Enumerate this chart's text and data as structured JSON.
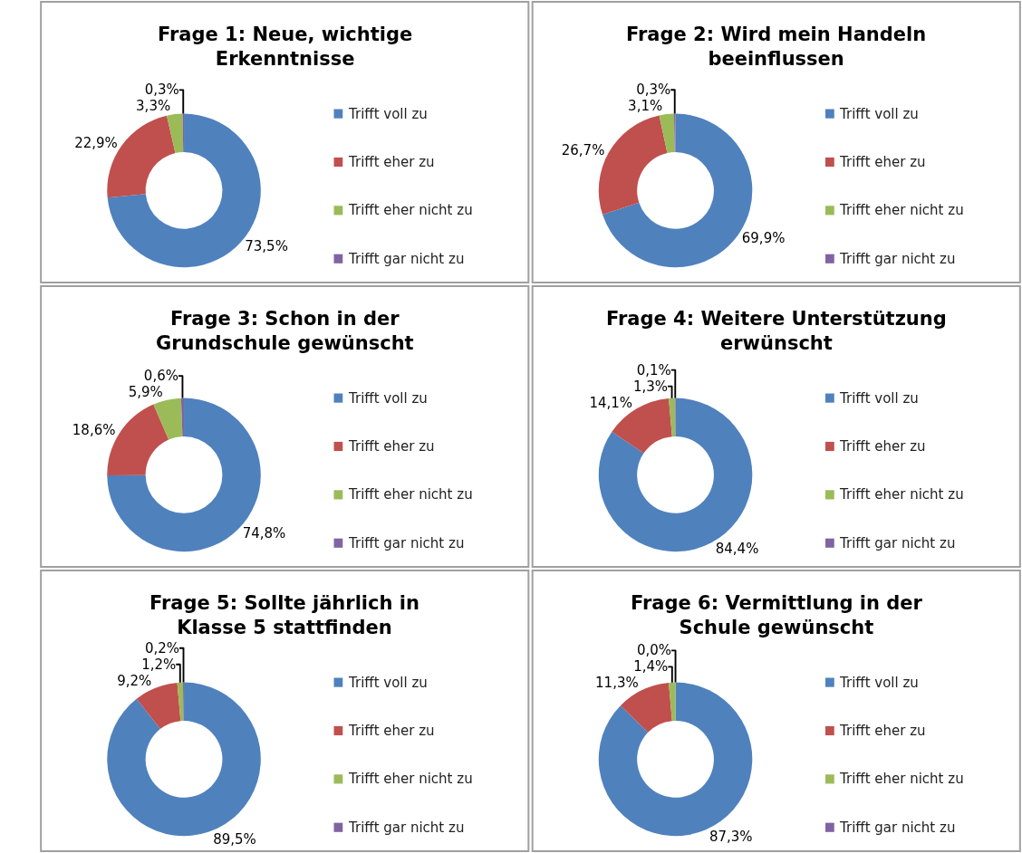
{
  "chart_data": [
    {
      "type": "donut",
      "title": "Frage 1: Neue, wichtige Erkenntnisse",
      "categories": [
        "Trifft voll zu",
        "Trifft eher zu",
        "Trifft eher nicht zu",
        "Trifft gar nicht zu"
      ],
      "values": [
        73.5,
        22.9,
        3.3,
        0.3
      ],
      "value_labels": [
        "73,5%",
        "22,9%",
        "3,3%",
        "0,3%"
      ],
      "colors": [
        "#4f81bd",
        "#c0504d",
        "#9bbb59",
        "#8064a2"
      ],
      "legend": "right"
    },
    {
      "type": "donut",
      "title": "Frage 2: Wird mein Handeln beeinflussen",
      "categories": [
        "Trifft voll zu",
        "Trifft eher zu",
        "Trifft eher nicht zu",
        "Trifft gar nicht zu"
      ],
      "values": [
        69.9,
        26.7,
        3.1,
        0.3
      ],
      "value_labels": [
        "69,9%",
        "26,7%",
        "3,1%",
        "0,3%"
      ],
      "colors": [
        "#4f81bd",
        "#c0504d",
        "#9bbb59",
        "#8064a2"
      ],
      "legend": "right"
    },
    {
      "type": "donut",
      "title": "Frage 3: Schon in der Grundschule gewünscht",
      "categories": [
        "Trifft voll zu",
        "Trifft eher zu",
        "Trifft eher nicht zu",
        "Trifft gar nicht zu"
      ],
      "values": [
        74.8,
        18.6,
        5.9,
        0.6
      ],
      "value_labels": [
        "74,8%",
        "18,6%",
        "5,9%",
        "0,6%"
      ],
      "colors": [
        "#4f81bd",
        "#c0504d",
        "#9bbb59",
        "#8064a2"
      ],
      "legend": "right"
    },
    {
      "type": "donut",
      "title": "Frage 4: Weitere Unterstützung erwünscht",
      "categories": [
        "Trifft voll zu",
        "Trifft eher zu",
        "Trifft eher nicht zu",
        "Trifft gar nicht zu"
      ],
      "values": [
        84.4,
        14.1,
        1.3,
        0.1
      ],
      "value_labels": [
        "84,4%",
        "14,1%",
        "1,3%",
        "0,1%"
      ],
      "colors": [
        "#4f81bd",
        "#c0504d",
        "#9bbb59",
        "#8064a2"
      ],
      "legend": "right"
    },
    {
      "type": "donut",
      "title": "Frage 5: Sollte jährlich in Klasse 5 stattfinden",
      "categories": [
        "Trifft voll zu",
        "Trifft eher zu",
        "Trifft eher nicht zu",
        "Trifft gar nicht zu"
      ],
      "values": [
        89.5,
        9.2,
        1.2,
        0.2
      ],
      "value_labels": [
        "89,5%",
        "9,2%",
        "1,2%",
        "0,2%"
      ],
      "colors": [
        "#4f81bd",
        "#c0504d",
        "#9bbb59",
        "#8064a2"
      ],
      "legend": "right"
    },
    {
      "type": "donut",
      "title": "Frage 6: Vermittlung in der Schule gewünscht",
      "categories": [
        "Trifft voll zu",
        "Trifft eher zu",
        "Trifft eher nicht zu",
        "Trifft gar nicht zu"
      ],
      "values": [
        87.3,
        11.3,
        1.4,
        0.0
      ],
      "value_labels": [
        "87,3%",
        "11,3%",
        "1,4%",
        "0,0%"
      ],
      "colors": [
        "#4f81bd",
        "#c0504d",
        "#9bbb59",
        "#8064a2"
      ],
      "legend": "right"
    }
  ]
}
